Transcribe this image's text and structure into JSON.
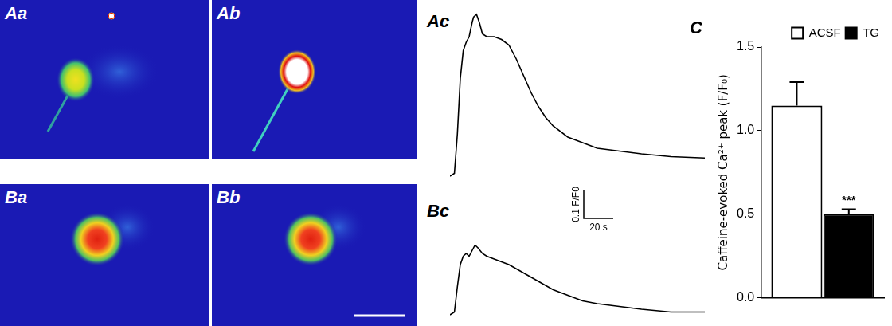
{
  "images": [
    {
      "panel": "Aa"
    },
    {
      "panel": "Ab"
    },
    {
      "panel": "Ba"
    },
    {
      "panel": "Bb"
    }
  ],
  "chart_data": [
    {
      "panel": "Ac",
      "type": "line",
      "color": "#000000",
      "grid": false,
      "tick_labels": false,
      "x": [
        0,
        3,
        5,
        7,
        9,
        11,
        13,
        15,
        16,
        18,
        20,
        22,
        25,
        30,
        35,
        40,
        45,
        50,
        55,
        60,
        65,
        70,
        80,
        90,
        100,
        115,
        130,
        150,
        173
      ],
      "values": [
        0,
        0.01,
        0.15,
        0.35,
        0.45,
        0.48,
        0.5,
        0.55,
        0.57,
        0.58,
        0.55,
        0.51,
        0.5,
        0.5,
        0.49,
        0.47,
        0.42,
        0.36,
        0.3,
        0.25,
        0.21,
        0.18,
        0.14,
        0.12,
        0.1,
        0.09,
        0.08,
        0.07,
        0.065
      ],
      "xlim": [
        0,
        173
      ],
      "ylim": [
        -0.02,
        0.62
      ]
    },
    {
      "panel": "Bc",
      "type": "line",
      "color": "#000000",
      "grid": false,
      "tick_labels": false,
      "x": [
        0,
        3,
        5,
        7,
        9,
        11,
        13,
        15,
        17,
        19,
        22,
        25,
        30,
        40,
        50,
        60,
        70,
        80,
        90,
        100,
        115,
        130,
        150,
        173
      ],
      "values": [
        0,
        0.01,
        0.1,
        0.18,
        0.21,
        0.22,
        0.21,
        0.23,
        0.25,
        0.24,
        0.22,
        0.21,
        0.2,
        0.18,
        0.15,
        0.12,
        0.09,
        0.07,
        0.05,
        0.04,
        0.03,
        0.02,
        0.01,
        0.01
      ],
      "xlim": [
        0,
        173
      ],
      "ylim": [
        -0.02,
        0.3
      ]
    },
    {
      "panel": "C",
      "type": "bar",
      "grid": false,
      "legend": "upper right",
      "ylabel": "Caffeine-evoked Ca²⁺ peak (F/F₀)",
      "categories": [
        null
      ],
      "series": [
        {
          "name": "ACSF",
          "color": "#ffffff",
          "values": [
            1.15
          ],
          "errors": [
            0.14
          ]
        },
        {
          "name": "TG",
          "color": "#000000",
          "values": [
            0.5
          ],
          "errors": [
            0.03
          ]
        }
      ],
      "ylim": [
        0,
        1.5
      ],
      "yticks": [
        {
          "value": 0,
          "label": "0.0"
        },
        {
          "value": 0.5,
          "label": "0.5"
        },
        {
          "value": 1,
          "label": "1.0"
        },
        {
          "value": 1.5,
          "label": "1.5"
        }
      ],
      "annotations": [
        {
          "text": "***",
          "series": "TG"
        }
      ]
    }
  ],
  "scale_bar": {
    "y": 0.1,
    "y_label": "0.1 F/F0",
    "x": 20,
    "x_label": "20 s"
  }
}
